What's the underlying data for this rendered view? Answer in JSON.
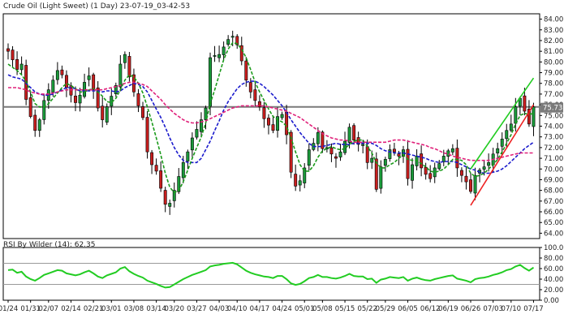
{
  "chart_title": "Crude Oil (Light Sweet) (1 Day) 23-07-19_03-42-53",
  "chart_data": [
    {
      "type": "candlestick",
      "title": "Crude Oil (Light Sweet) (1 Day) 23-07-19_03-42-53",
      "ylim": [
        63.5,
        84.5
      ],
      "y_ticks": [
        64.0,
        65.0,
        66.0,
        67.0,
        68.0,
        69.0,
        70.0,
        71.0,
        72.0,
        73.0,
        74.0,
        75.0,
        76.0,
        77.0,
        78.0,
        79.0,
        80.0,
        81.0,
        82.0,
        83.0,
        84.0
      ],
      "x_tick_labels": [
        "01/24",
        "01/31",
        "02/07",
        "02/14",
        "02/21",
        "03/01",
        "03/08",
        "03/14",
        "03/20",
        "03/27",
        "04/03",
        "04/10",
        "04/17",
        "04/24",
        "05/01",
        "05/08",
        "05/15",
        "05/22",
        "05/29",
        "06/05",
        "06/12",
        "06/19",
        "06/26",
        "07/03",
        "07/10",
        "07/17"
      ],
      "last_price_label": "75.73",
      "last_price": 75.73,
      "closes": [
        81.0,
        80.2,
        79.3,
        79.8,
        76.5,
        74.9,
        73.6,
        74.6,
        76.4,
        77.4,
        78.3,
        79.2,
        78.8,
        77.6,
        76.9,
        76.2,
        76.9,
        78.1,
        78.7,
        77.4,
        75.7,
        74.6,
        75.8,
        76.8,
        77.8,
        79.8,
        80.7,
        78.6,
        77.2,
        75.9,
        74.8,
        71.6,
        70.4,
        69.8,
        68.2,
        66.7,
        66.8,
        68.0,
        69.3,
        70.6,
        71.6,
        72.9,
        73.7,
        74.6,
        75.7,
        80.4,
        80.6,
        80.7,
        81.4,
        82.1,
        82.4,
        81.6,
        80.1,
        78.3,
        77.2,
        76.4,
        75.8,
        74.7,
        74.1,
        73.6,
        74.9,
        75.1,
        73.2,
        69.7,
        68.4,
        68.9,
        70.1,
        71.8,
        72.4,
        73.4,
        71.9,
        72.0,
        71.4,
        71.0,
        71.6,
        72.6,
        73.9,
        72.7,
        72.3,
        72.3,
        70.6,
        71.0,
        68.1,
        70.2,
        70.9,
        71.8,
        71.6,
        71.2,
        71.8,
        69.1,
        70.4,
        71.2,
        70.1,
        69.5,
        69.1,
        70.1,
        70.5,
        71.2,
        71.7,
        71.9,
        70.1,
        69.4,
        68.8,
        67.9,
        69.4,
        69.9,
        70.2,
        70.6,
        71.4,
        71.9,
        72.8,
        73.6,
        74.2,
        75.8,
        76.6,
        75.4,
        74.2,
        75.8
      ],
      "series": [
        {
          "name": "",
          "color": "#1a1acc",
          "style": "dashed",
          "values": [
            78.8,
            78.6,
            78.5,
            78.4,
            78.0,
            77.6,
            77.2,
            77.0,
            76.9,
            76.9,
            77.0,
            77.2,
            77.4,
            77.6,
            77.6,
            77.5,
            77.3,
            77.3,
            77.3,
            77.3,
            77.3,
            77.2,
            77.3,
            77.3,
            77.2,
            77.3,
            77.6,
            77.8,
            78.0,
            77.9,
            77.7,
            77.2,
            76.4,
            75.6,
            74.8,
            73.9,
            72.9,
            72.0,
            71.3,
            70.8,
            70.6,
            70.6,
            70.6,
            71.0,
            71.8,
            72.6,
            73.6,
            74.5,
            75.5,
            76.3,
            76.9,
            77.5,
            77.9,
            78.1,
            78.2,
            78.2,
            78.0,
            77.7,
            77.3,
            76.9,
            76.4,
            75.9,
            75.3,
            74.6,
            74.0,
            73.4,
            72.9,
            72.4,
            72.1,
            72.1,
            72.1,
            72.2,
            72.3,
            72.4,
            72.3,
            72.3,
            72.3,
            72.4,
            72.4,
            72.4,
            72.4,
            72.4,
            72.2,
            71.9,
            71.7,
            71.6,
            71.5,
            71.5,
            71.5,
            71.4,
            71.3,
            71.2,
            71.1,
            71.0,
            70.8,
            70.7,
            70.6,
            70.7,
            70.7,
            70.7,
            70.6,
            70.4,
            70.2,
            70.0,
            69.9,
            69.7,
            69.6,
            69.6,
            69.7,
            69.8,
            70.0,
            70.3,
            70.7,
            71.1,
            71.5,
            71.9,
            72.2,
            72.5
          ]
        },
        {
          "name": "",
          "color": "#1a9a1a",
          "style": "dashed",
          "values": [
            79.8,
            79.5,
            79.2,
            78.8,
            78.2,
            77.2,
            76.1,
            75.8,
            75.8,
            76.1,
            76.6,
            77.1,
            77.6,
            78.0,
            77.8,
            77.5,
            77.2,
            77.2,
            77.4,
            77.5,
            77.2,
            76.8,
            76.3,
            76.2,
            76.6,
            77.4,
            78.3,
            78.8,
            78.6,
            78.0,
            77.1,
            75.8,
            74.4,
            72.9,
            71.3,
            69.6,
            68.3,
            67.8,
            68.0,
            68.8,
            69.9,
            71.0,
            72.0,
            73.0,
            74.3,
            76.1,
            77.4,
            78.8,
            80.2,
            81.2,
            81.8,
            81.7,
            81.2,
            80.4,
            79.3,
            78.1,
            77.2,
            76.4,
            75.6,
            74.9,
            74.6,
            74.4,
            74.0,
            72.9,
            71.6,
            70.4,
            69.8,
            69.8,
            70.3,
            71.1,
            71.7,
            71.9,
            72.1,
            71.9,
            71.8,
            71.9,
            72.3,
            72.6,
            72.7,
            72.7,
            72.1,
            71.5,
            70.6,
            70.1,
            70.1,
            70.4,
            70.6,
            71.0,
            71.3,
            70.9,
            70.8,
            70.8,
            70.5,
            70.2,
            69.8,
            69.7,
            69.8,
            70.0,
            70.4,
            70.9,
            70.9,
            70.8,
            70.4,
            69.6,
            69.3,
            69.4,
            69.6,
            70.0,
            70.4,
            70.9,
            71.6,
            72.4,
            73.2,
            74.2,
            75.0,
            75.2,
            75.1,
            75.2
          ]
        },
        {
          "name": "",
          "color": "#e0207a",
          "style": "dashed",
          "values": [
            77.6,
            77.6,
            77.6,
            77.5,
            77.4,
            77.2,
            77.1,
            77.0,
            77.0,
            77.0,
            77.1,
            77.2,
            77.3,
            77.4,
            77.4,
            77.4,
            77.4,
            77.4,
            77.4,
            77.4,
            77.4,
            77.4,
            77.5,
            77.6,
            77.7,
            77.8,
            78.0,
            78.1,
            78.1,
            78.0,
            77.9,
            77.7,
            77.3,
            76.9,
            76.5,
            76.0,
            75.6,
            75.2,
            74.9,
            74.6,
            74.4,
            74.3,
            74.3,
            74.4,
            74.5,
            74.7,
            74.9,
            75.1,
            75.3,
            75.5,
            75.7,
            75.8,
            75.9,
            75.9,
            75.9,
            75.9,
            75.9,
            75.9,
            75.8,
            75.7,
            75.6,
            75.5,
            75.4,
            75.2,
            75.0,
            74.8,
            74.5,
            74.2,
            73.9,
            73.6,
            73.3,
            73.1,
            72.9,
            72.8,
            72.7,
            72.7,
            72.6,
            72.5,
            72.5,
            72.5,
            72.5,
            72.5,
            72.5,
            72.5,
            72.5,
            72.6,
            72.7,
            72.7,
            72.7,
            72.6,
            72.5,
            72.4,
            72.3,
            72.2,
            72.0,
            71.9,
            71.7,
            71.5,
            71.4,
            71.2,
            71.1,
            71.0,
            70.9,
            70.8,
            70.8,
            70.8,
            70.8,
            70.8,
            70.9,
            71.0,
            71.1,
            71.2,
            71.3,
            71.4,
            71.5,
            71.5,
            71.5,
            71.5
          ]
        }
      ],
      "trendlines": [
        {
          "color": "#22cc22",
          "from": [
            "06/26",
            70.0
          ],
          "to": [
            "07/17",
            78.5
          ]
        },
        {
          "color": "#ee2222",
          "from": [
            "06/26",
            66.6
          ],
          "to": [
            "07/17",
            76.0
          ]
        }
      ],
      "horizontal_line": {
        "color": "#7a7a7a",
        "value": 75.8
      },
      "rsi": {
        "label": "RSI By Wilder (14): 62.35",
        "period": 14,
        "last": 62.35,
        "ylim": [
          0,
          100
        ],
        "y_ticks": [
          0,
          20,
          40,
          60,
          80,
          100
        ],
        "reference_lines": [
          30,
          70
        ],
        "values": [
          57,
          58,
          52,
          54,
          45,
          40,
          37,
          42,
          48,
          51,
          54,
          57,
          56,
          51,
          49,
          47,
          49,
          53,
          56,
          51,
          45,
          42,
          47,
          50,
          53,
          60,
          63,
          55,
          50,
          46,
          43,
          37,
          34,
          31,
          27,
          24,
          25,
          30,
          35,
          40,
          44,
          48,
          51,
          54,
          57,
          64,
          66,
          67,
          69,
          70,
          71,
          68,
          62,
          56,
          52,
          49,
          47,
          45,
          44,
          42,
          46,
          46,
          40,
          32,
          29,
          31,
          36,
          42,
          44,
          48,
          44,
          44,
          42,
          41,
          43,
          46,
          50,
          46,
          45,
          45,
          40,
          41,
          33,
          39,
          41,
          44,
          43,
          42,
          44,
          37,
          41,
          43,
          40,
          38,
          37,
          40,
          42,
          44,
          46,
          47,
          41,
          39,
          37,
          34,
          40,
          42,
          43,
          45,
          48,
          50,
          53,
          57,
          59,
          64,
          67,
          61,
          56,
          62
        ]
      }
    }
  ]
}
